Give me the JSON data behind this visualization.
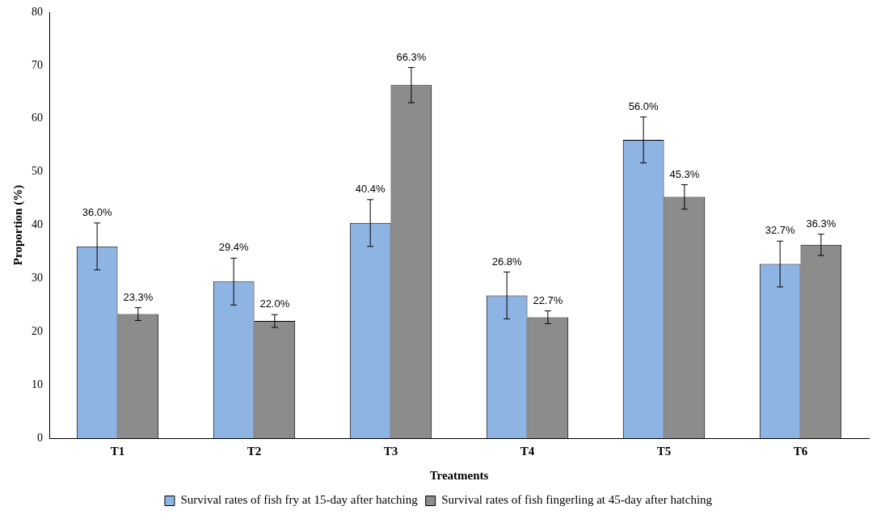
{
  "chart_data": {
    "type": "bar",
    "xlabel": "Treatments",
    "ylabel": "Proportion (%)",
    "categories": [
      "T1",
      "T2",
      "T3",
      "T4",
      "T5",
      "T6"
    ],
    "series": [
      {
        "name": "Survival rates of fish fry at 15-day after hatching",
        "color": "#8eb4e3",
        "values": [
          36.0,
          29.4,
          40.4,
          26.8,
          56.0,
          32.7
        ],
        "errors": [
          4.4,
          4.4,
          4.4,
          4.4,
          4.3,
          4.3
        ],
        "value_labels": [
          "36.0%",
          "29.4%",
          "40.4%",
          "26.8%",
          "56.0%",
          "32.7%"
        ]
      },
      {
        "name": "Survival rates of fish fingerling at 45-day after hatching",
        "color": "#8c8c8c",
        "values": [
          23.3,
          22.0,
          66.3,
          22.7,
          45.3,
          36.3
        ],
        "errors": [
          1.2,
          1.2,
          3.3,
          1.2,
          2.3,
          2.0
        ],
        "value_labels": [
          "23.3%",
          "22.0%",
          "66.3%",
          "22.7%",
          "45.3%",
          "36.3%"
        ]
      }
    ],
    "ylim": [
      0,
      80
    ],
    "yticks": [
      0,
      10,
      20,
      30,
      40,
      50,
      60,
      70,
      80
    ],
    "grid": false,
    "legend": "bottom"
  }
}
